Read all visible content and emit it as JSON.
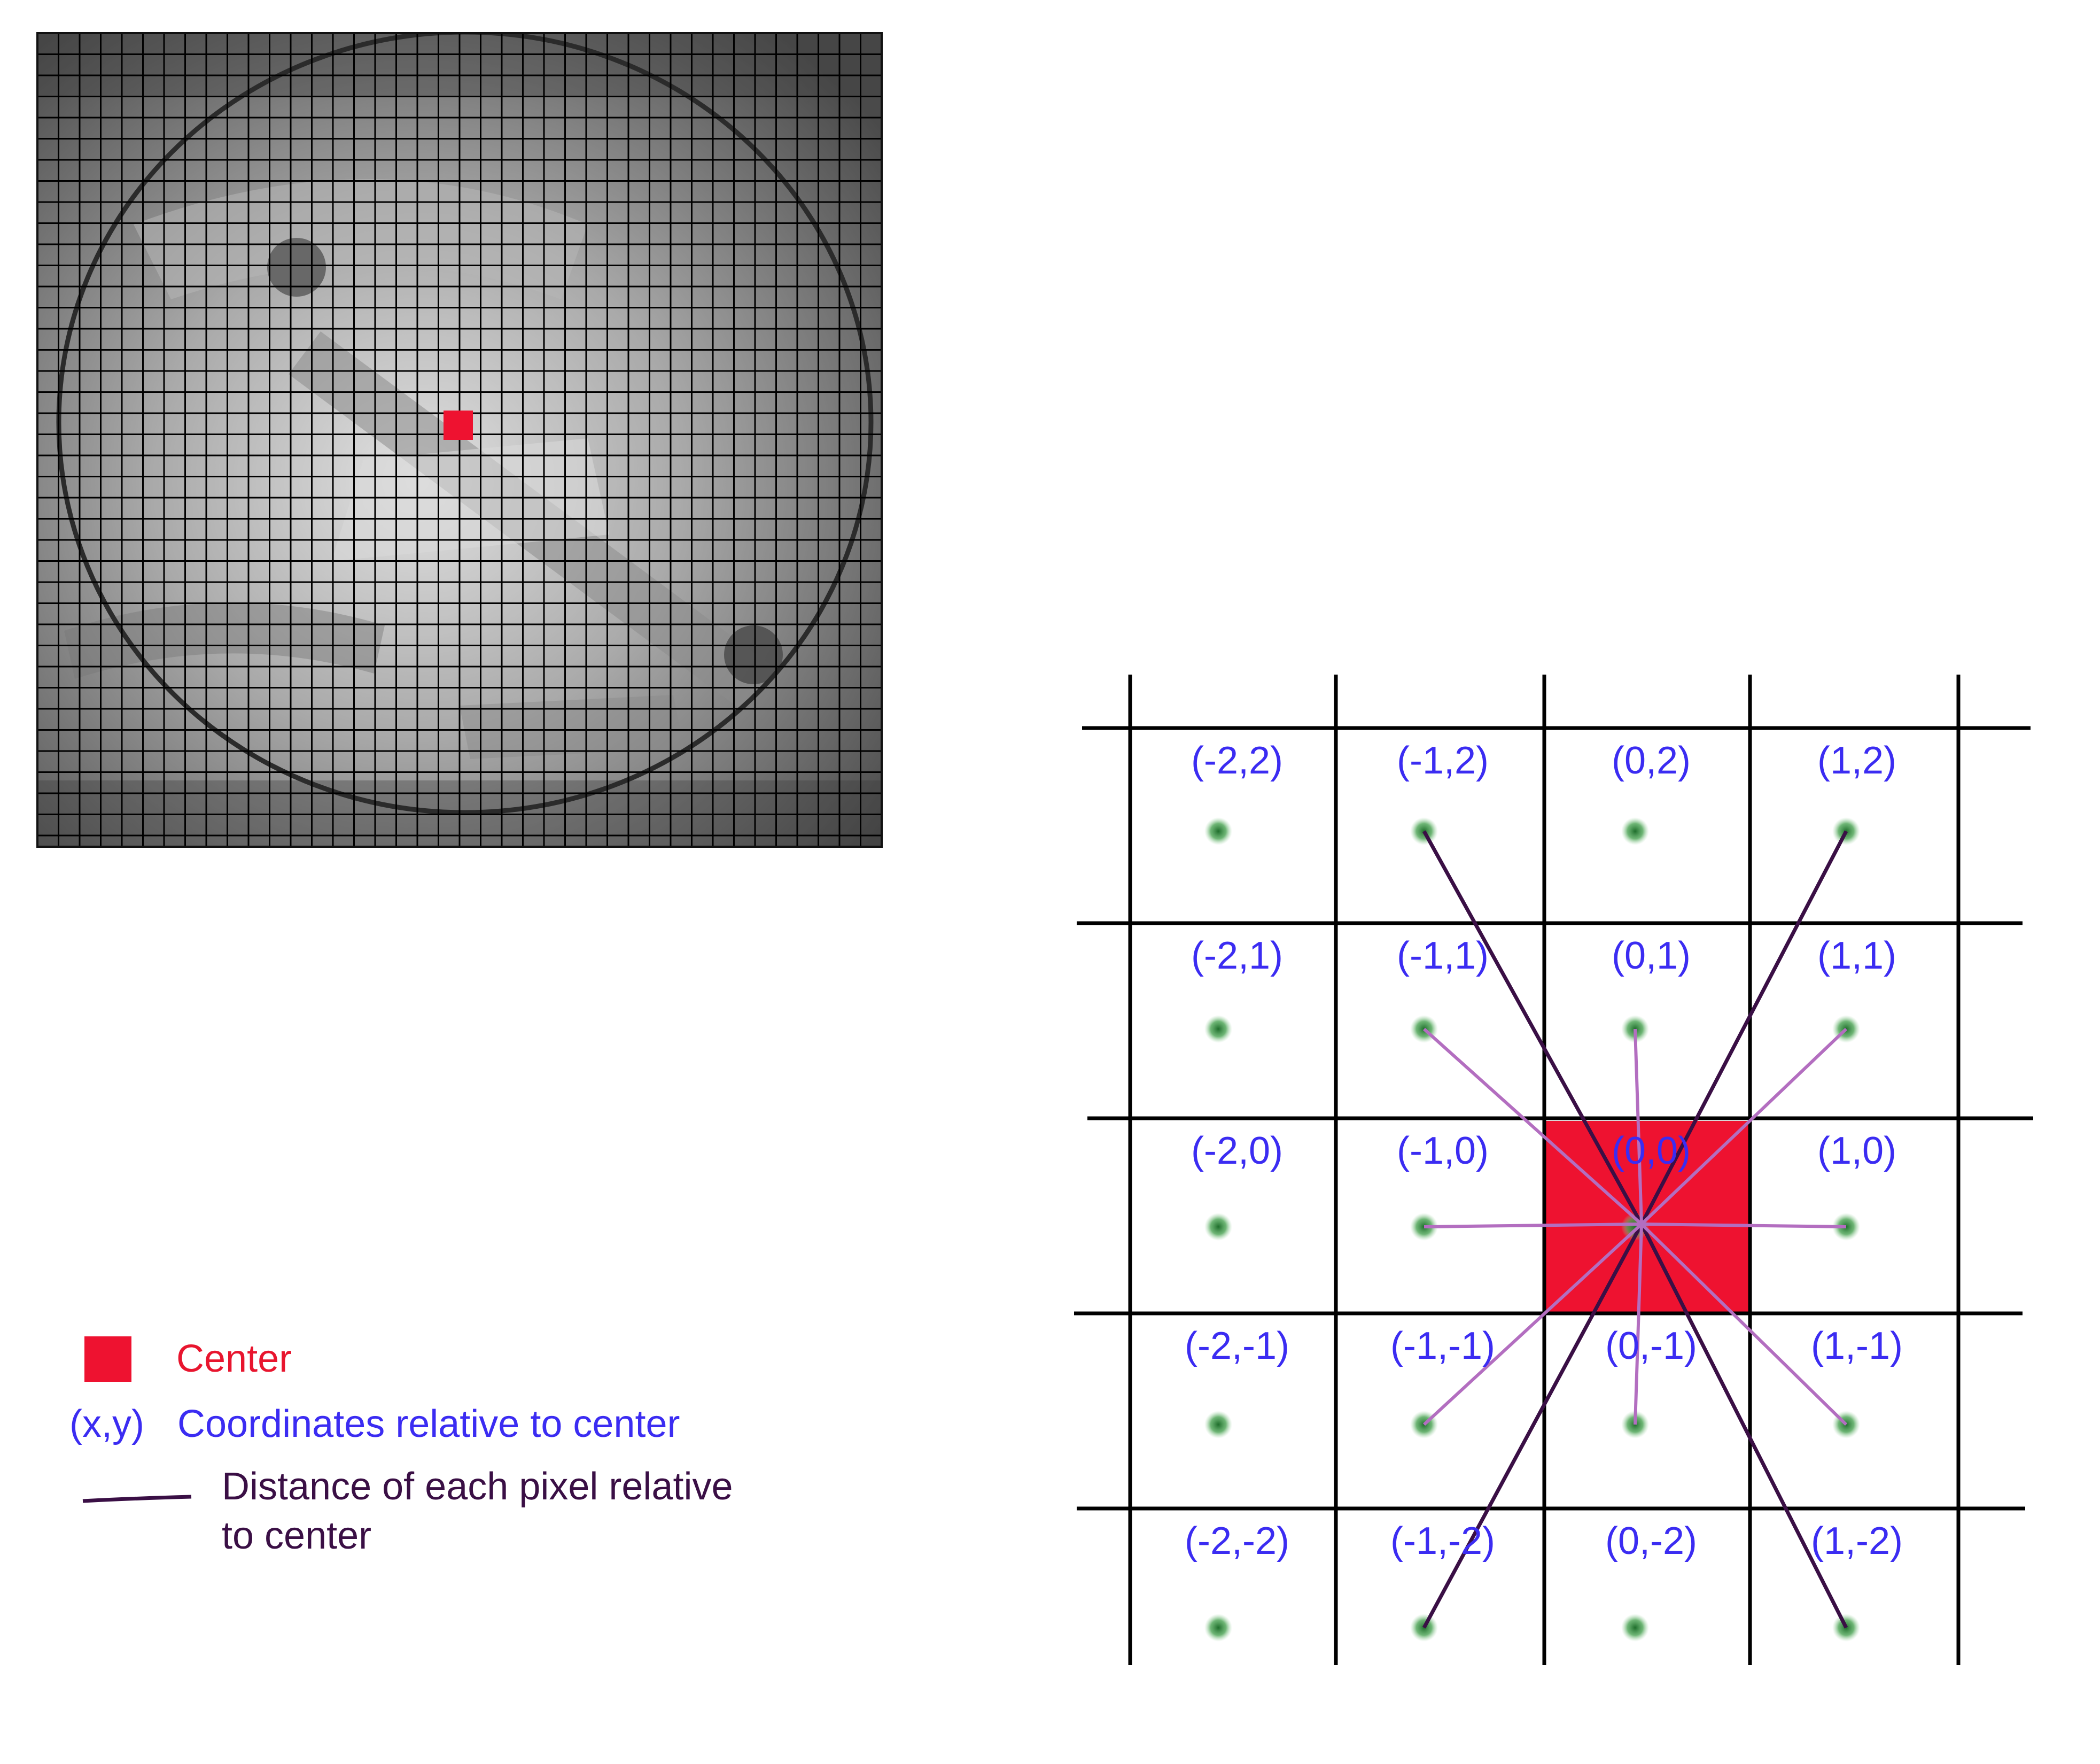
{
  "legend": {
    "center_label": "Center",
    "coords_prefix": "(x,y)",
    "coords_label": "Coordinates relative to center",
    "distance_label_line1": "Distance of each pixel relative",
    "distance_label_line2": "to center"
  },
  "grid": {
    "columns": [
      -2,
      -1,
      0,
      1
    ],
    "rows": [
      2,
      1,
      0,
      -1,
      -2
    ],
    "center": [
      0,
      0
    ],
    "cell_labels": [
      [
        "(-2,2)",
        "(-1,2)",
        "(0,2)",
        "(1,2)"
      ],
      [
        "(-2,1)",
        "(-1,1)",
        "(0,1)",
        "(1,1)"
      ],
      [
        "(-2,0)",
        "(-1,0)",
        "(0,0)",
        "(1,0)"
      ],
      [
        "(-2,-1)",
        "(-1,-1)",
        "(0,-1)",
        "(1,-1)"
      ],
      [
        "(-2,-2)",
        "(-1,-2)",
        "(0,-2)",
        "(1,-2)"
      ]
    ],
    "distance_lines_to": [
      [
        -1,
        2
      ],
      [
        1,
        2
      ],
      [
        -1,
        -2
      ],
      [
        1,
        -2
      ],
      [
        -1,
        1
      ],
      [
        0,
        1
      ],
      [
        1,
        1
      ],
      [
        -1,
        0
      ],
      [
        1,
        0
      ],
      [
        -1,
        -1
      ],
      [
        0,
        -1
      ],
      [
        1,
        -1
      ]
    ]
  },
  "colors": {
    "center_red": "#ee1230",
    "label_blue": "#3b2cf2",
    "line_dark": "#3a0f45",
    "line_light": "#b36ec0",
    "dot_green": "#2e8b3a",
    "grid_black": "#000000"
  }
}
